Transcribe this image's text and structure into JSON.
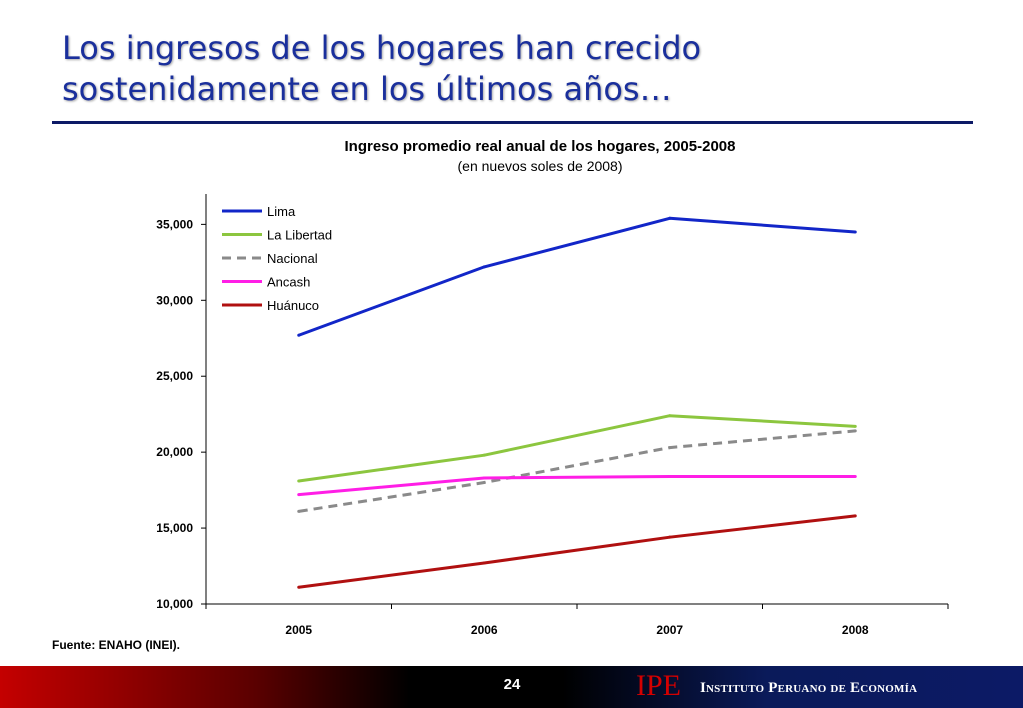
{
  "slide": {
    "title": "Los ingresos de los hogares han crecido sostenidamente en los últimos años…",
    "page_number": "24",
    "source": "Fuente: ENAHO (INEI).",
    "logo_mark": "IPE",
    "logo_name": "Instituto Peruano de Economía"
  },
  "chart_data": {
    "type": "line",
    "title": "Ingreso promedio real anual de los hogares, 2005-2008",
    "subtitle": "(en nuevos soles de 2008)",
    "categories": [
      "2005",
      "2006",
      "2007",
      "2008"
    ],
    "ylim": [
      10000,
      37000
    ],
    "yticks": [
      10000,
      15000,
      20000,
      25000,
      30000,
      35000
    ],
    "ytick_labels": [
      "10,000",
      "15,000",
      "20,000",
      "25,000",
      "30,000",
      "35,000"
    ],
    "grid": false,
    "legend_position": "top-left",
    "series": [
      {
        "name": "Lima",
        "color": "#1226c8",
        "dashed": false,
        "values": [
          27700,
          32200,
          35400,
          34500
        ]
      },
      {
        "name": "La Libertad",
        "color": "#8cc63f",
        "dashed": false,
        "values": [
          18100,
          19800,
          22400,
          21700
        ]
      },
      {
        "name": "Nacional",
        "color": "#8a8a8a",
        "dashed": true,
        "values": [
          16100,
          18000,
          20300,
          21400
        ]
      },
      {
        "name": "Ancash",
        "color": "#ff1ee6",
        "dashed": false,
        "values": [
          17200,
          18300,
          18400,
          18400
        ]
      },
      {
        "name": "Huánuco",
        "color": "#b01010",
        "dashed": false,
        "values": [
          11100,
          12700,
          14400,
          15800
        ]
      }
    ]
  }
}
